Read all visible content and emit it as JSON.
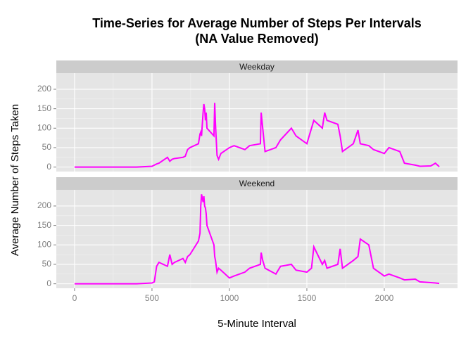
{
  "chart_data": {
    "type": "line",
    "facets": true,
    "title": "Time-Series for Average Number of Steps Per Intervals\n(NA Value Removed)",
    "x_label": "5-Minute Interval",
    "y_label": "Average Number of Steps Taken",
    "x": [
      0,
      100,
      200,
      300,
      400,
      500,
      515,
      530,
      545,
      600,
      615,
      630,
      645,
      700,
      715,
      730,
      745,
      800,
      810,
      815,
      820,
      830,
      835,
      840,
      845,
      850,
      855,
      900,
      905,
      910,
      915,
      920,
      930,
      945,
      1000,
      1030,
      1100,
      1130,
      1200,
      1205,
      1215,
      1230,
      1300,
      1330,
      1400,
      1430,
      1500,
      1530,
      1545,
      1600,
      1615,
      1630,
      1700,
      1715,
      1730,
      1800,
      1830,
      1845,
      1900,
      1930,
      2000,
      2030,
      2100,
      2130,
      2200,
      2230,
      2300,
      2330,
      2355
    ],
    "series": [
      {
        "name": "Weekday",
        "color": "#ff00ff",
        "values": [
          0,
          0,
          0,
          0,
          0,
          2,
          5,
          8,
          10,
          25,
          15,
          20,
          22,
          25,
          28,
          45,
          50,
          60,
          85,
          90,
          80,
          140,
          162,
          150,
          120,
          140,
          100,
          80,
          165,
          110,
          70,
          30,
          20,
          35,
          50,
          55,
          45,
          55,
          60,
          140,
          100,
          40,
          50,
          70,
          100,
          80,
          60,
          100,
          120,
          100,
          140,
          120,
          110,
          80,
          40,
          60,
          95,
          60,
          55,
          45,
          35,
          50,
          40,
          10,
          5,
          2,
          3,
          10,
          1
        ]
      },
      {
        "name": "Weekend",
        "color": "#ff00ff",
        "values": [
          0,
          0,
          0,
          0,
          0,
          2,
          5,
          45,
          55,
          45,
          75,
          50,
          55,
          65,
          55,
          70,
          75,
          110,
          130,
          200,
          230,
          210,
          225,
          200,
          195,
          180,
          150,
          100,
          70,
          60,
          45,
          30,
          40,
          35,
          15,
          20,
          30,
          40,
          50,
          80,
          60,
          40,
          25,
          45,
          50,
          35,
          30,
          40,
          95,
          50,
          60,
          40,
          50,
          90,
          40,
          60,
          70,
          115,
          100,
          40,
          20,
          25,
          15,
          10,
          12,
          5,
          3,
          2,
          1
        ]
      }
    ],
    "xlim": [
      -117.75,
      2472.75
    ],
    "xticks": [
      0,
      500,
      1000,
      1500,
      2000
    ],
    "ylim": [
      -11.5,
      241.5
    ],
    "yticks": [
      0,
      50,
      100,
      150,
      200
    ],
    "grid": true
  }
}
